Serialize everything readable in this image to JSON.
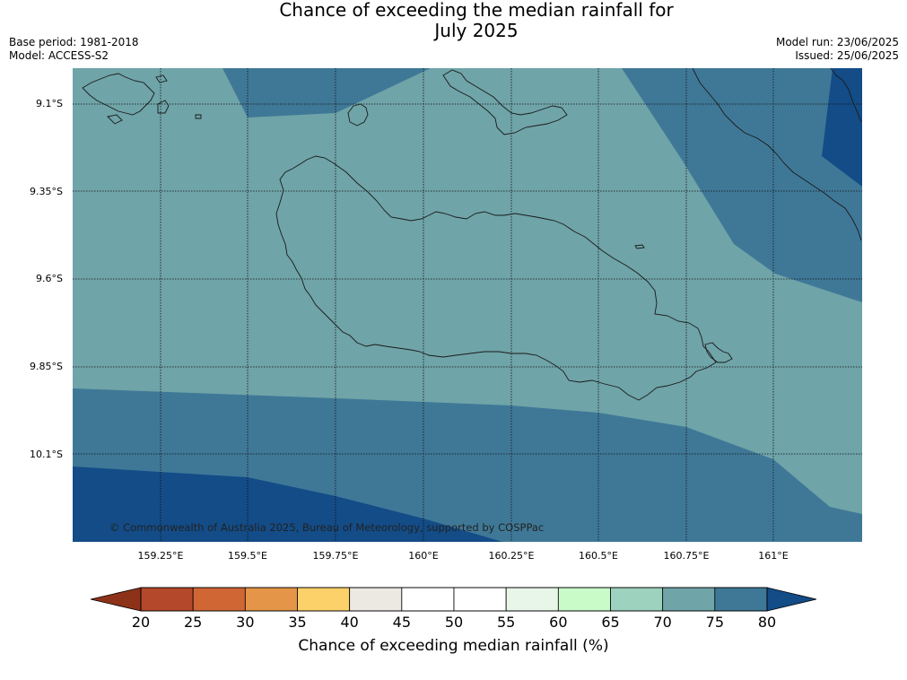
{
  "header": {
    "title_line1": "Chance of exceeding the median rainfall for",
    "title_line2": "July 2025",
    "base_period": "Base period: 1981-2018",
    "model": "Model: ACCESS-S2",
    "model_run": "Model run: 23/06/2025",
    "issued": "Issued: 25/06/2025"
  },
  "map": {
    "copyright": "© Commonwealth of Australia 2025, Bureau of Meteorology, supported by COSPPac",
    "lat_labels": [
      "9.1°S",
      "9.35°S",
      "9.6°S",
      "9.85°S",
      "10.1°S"
    ],
    "lon_labels": [
      "159.25°E",
      "159.5°E",
      "159.75°E",
      "160°E",
      "160.25°E",
      "160.5°E",
      "160.75°E",
      "161°E"
    ],
    "colors": {
      "band_70_75": "#6fa4a8",
      "band_75_80": "#3f7897",
      "band_80_plus": "#134c87",
      "coast": "#1a1a1a",
      "grid": "#111111"
    }
  },
  "colorbar": {
    "title": "Chance of exceeding median rainfall (%)",
    "ticks": [
      "20",
      "25",
      "30",
      "35",
      "40",
      "45",
      "50",
      "55",
      "60",
      "65",
      "70",
      "75",
      "80"
    ],
    "under_color": "#8d3219",
    "over_color": "#134c87",
    "bin_colors": [
      "#b3482a",
      "#d06634",
      "#e59548",
      "#fdd16a",
      "#ece8e2",
      "#ffffff",
      "#ffffff",
      "#e8f5e9",
      "#c9fbc8",
      "#9dd3be",
      "#6fa4a8",
      "#3f7897"
    ]
  }
}
